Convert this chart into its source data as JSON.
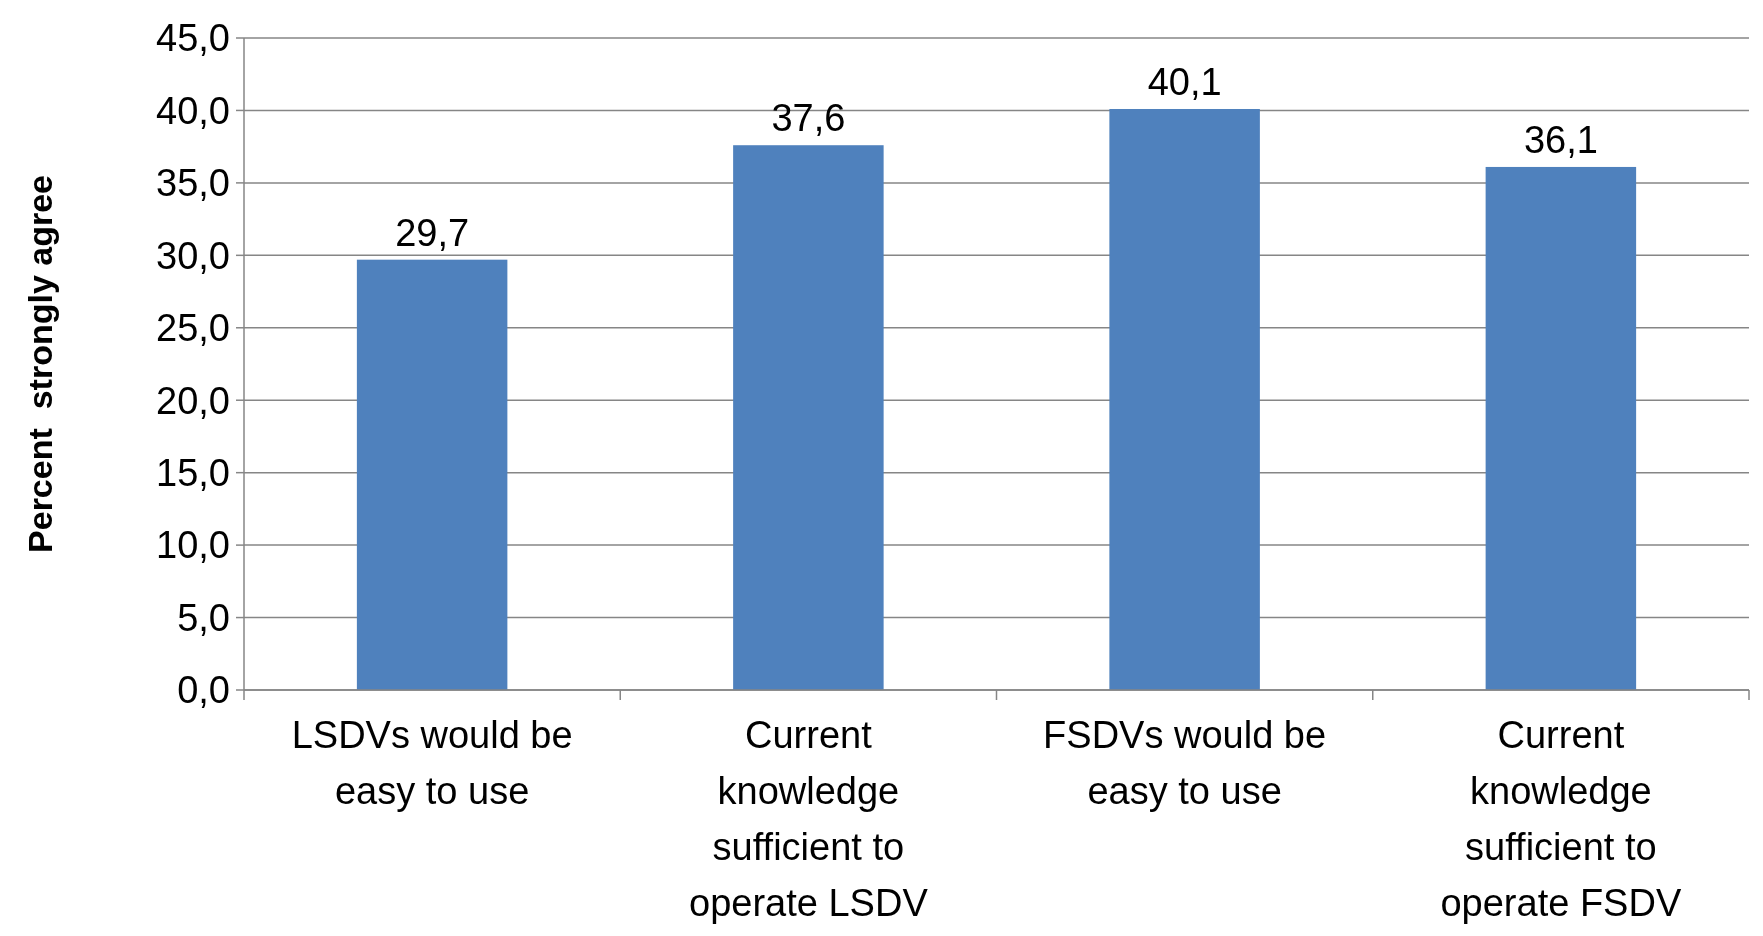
{
  "chart_data": {
    "type": "bar",
    "ylabel": "Percent  strongly agree",
    "categories": [
      "LSDVs would be easy to use",
      "Current knowledge sufficient to operate LSDV",
      "FSDVs would be easy to use",
      "Current knowledge sufficient to operate FSDV"
    ],
    "values": [
      29.7,
      37.6,
      40.1,
      36.1
    ],
    "color": "#4f81bd",
    "value_labels": [
      "29,7",
      "37,6",
      "40,1",
      "36,1"
    ],
    "ylim": [
      0,
      45
    ],
    "yticks": [
      {
        "value": 0,
        "label": "0,0"
      },
      {
        "value": 5,
        "label": "5,0"
      },
      {
        "value": 10,
        "label": "10,0"
      },
      {
        "value": 15,
        "label": "15,0"
      },
      {
        "value": 20,
        "label": "20,0"
      },
      {
        "value": 25,
        "label": "25,0"
      },
      {
        "value": 30,
        "label": "30,0"
      },
      {
        "value": 35,
        "label": "35,0"
      },
      {
        "value": 40,
        "label": "40,0"
      },
      {
        "value": 45,
        "label": "45,0"
      }
    ],
    "grid": "y"
  }
}
